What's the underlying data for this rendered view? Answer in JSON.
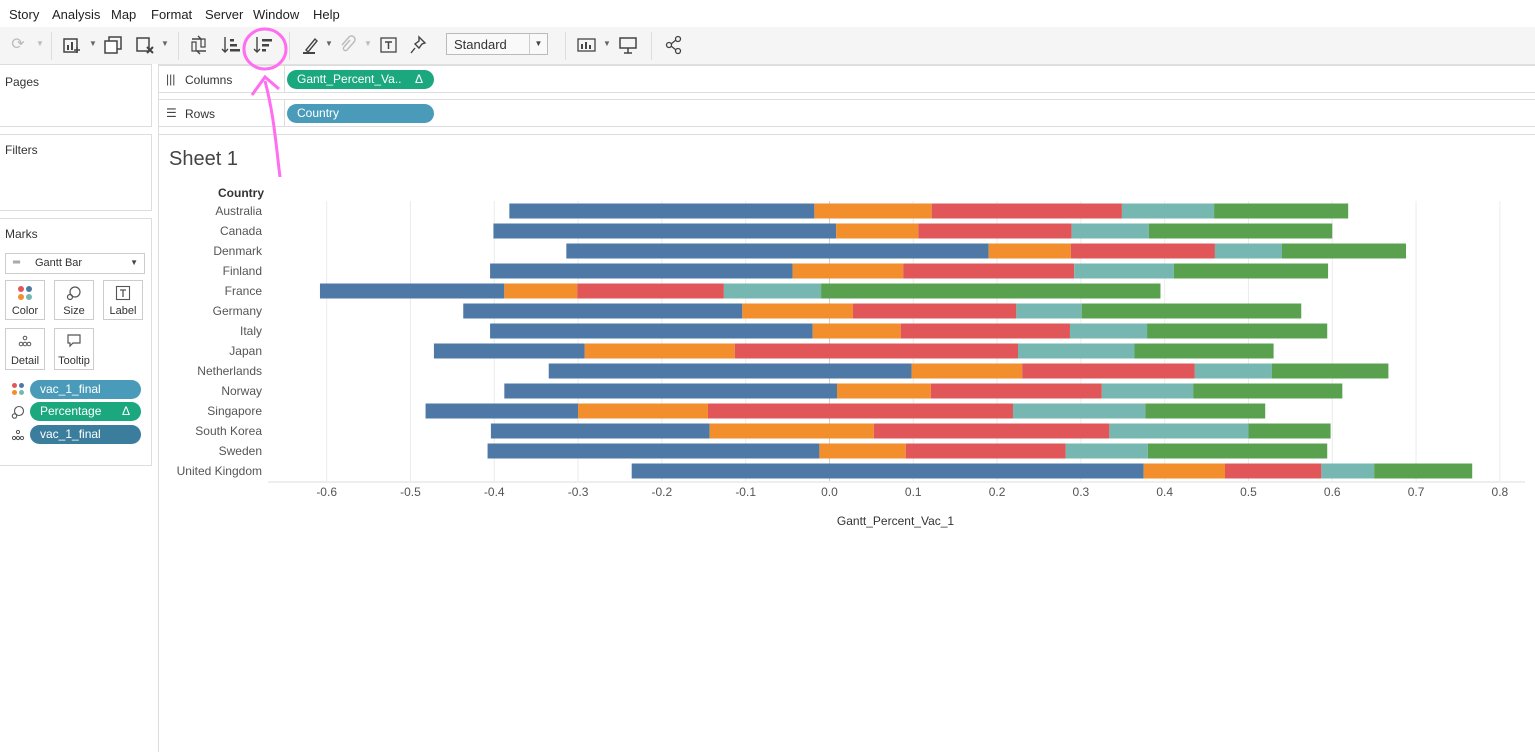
{
  "menu": [
    "Story",
    "Analysis",
    "Map",
    "Format",
    "Server",
    "Window",
    "Help"
  ],
  "toolbar": {
    "view_mode": "Standard"
  },
  "cards": {
    "pages": "Pages",
    "filters": "Filters",
    "marks": "Marks"
  },
  "shelves": {
    "columns_label": "Columns",
    "rows_label": "Rows",
    "columns_pill": "Gantt_Percent_Va..",
    "columns_pill_delta": "Δ",
    "rows_pill": "Country"
  },
  "marks": {
    "type": "Gantt Bar",
    "buttons": [
      "Color",
      "Size",
      "Label",
      "Detail",
      "Tooltip"
    ],
    "fields": [
      {
        "name": "vac_1_final",
        "delta": ""
      },
      {
        "name": "Percentage",
        "delta": "Δ"
      },
      {
        "name": "vac_1_final",
        "delta": ""
      }
    ]
  },
  "sheet": {
    "title": "Sheet 1",
    "row_header": "Country"
  },
  "colors": {
    "blue": "#4e79a7",
    "orange": "#f28e2b",
    "red": "#e15759",
    "teal": "#76b7b2",
    "green": "#59a14f",
    "annotation": "#ff6ef0"
  },
  "chart_data": {
    "type": "bar",
    "stacked_gantt": true,
    "xlabel": "Gantt_Percent_Vac_1",
    "ylabel": "Country",
    "xlim": [
      -0.67,
      0.83
    ],
    "xticks": [
      "-0.6",
      "-0.5",
      "-0.4",
      "-0.3",
      "-0.2",
      "-0.1",
      "0.0",
      "0.1",
      "0.2",
      "0.3",
      "0.4",
      "0.5",
      "0.6",
      "0.7",
      "0.8"
    ],
    "grid": true,
    "categories": [
      "Australia",
      "Canada",
      "Denmark",
      "Finland",
      "France",
      "Germany",
      "Italy",
      "Japan",
      "Netherlands",
      "Norway",
      "Singapore",
      "South Korea",
      "Sweden",
      "United Kingdom"
    ],
    "series_colors": [
      "#4e79a7",
      "#f28e2b",
      "#e15759",
      "#76b7b2",
      "#59a14f"
    ],
    "segment_boundaries": [
      [
        -0.382,
        -0.018,
        0.122,
        0.349,
        0.459,
        0.619
      ],
      [
        -0.401,
        0.008,
        0.106,
        0.289,
        0.381,
        0.6
      ],
      [
        -0.314,
        0.19,
        0.288,
        0.46,
        0.54,
        0.688
      ],
      [
        -0.405,
        -0.044,
        0.088,
        0.292,
        0.411,
        0.595
      ],
      [
        -0.608,
        -0.388,
        -0.301,
        -0.126,
        -0.01,
        0.395
      ],
      [
        -0.437,
        -0.104,
        0.028,
        0.223,
        0.301,
        0.563
      ],
      [
        -0.405,
        -0.02,
        0.085,
        0.287,
        0.379,
        0.594
      ],
      [
        -0.472,
        -0.292,
        -0.113,
        0.225,
        0.364,
        0.53
      ],
      [
        -0.335,
        0.098,
        0.23,
        0.436,
        0.528,
        0.667
      ],
      [
        -0.388,
        0.009,
        0.121,
        0.325,
        0.434,
        0.612
      ],
      [
        -0.482,
        -0.3,
        -0.145,
        0.219,
        0.377,
        0.52
      ],
      [
        -0.404,
        -0.143,
        0.053,
        0.334,
        0.5,
        0.598
      ],
      [
        -0.408,
        -0.012,
        0.091,
        0.282,
        0.38,
        0.594
      ],
      [
        -0.236,
        0.375,
        0.472,
        0.587,
        0.65,
        0.767
      ]
    ]
  }
}
